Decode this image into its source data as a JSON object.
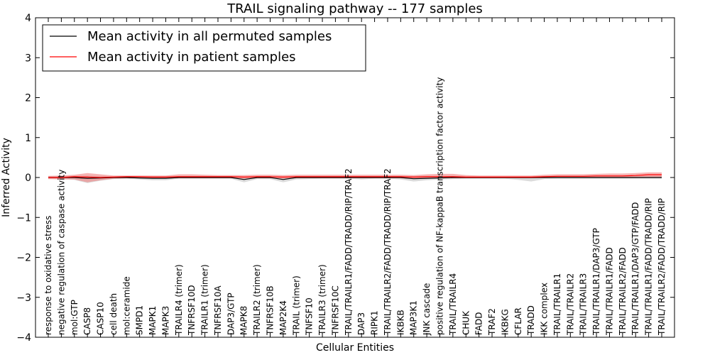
{
  "chart_data": {
    "type": "line",
    "title": "TRAIL signaling pathway -- 177 samples",
    "xlabel": "Cellular Entities",
    "ylabel": "Inferred Activity",
    "ylim": [
      -4,
      4
    ],
    "yticks": [
      -4,
      -3,
      -2,
      -1,
      0,
      1,
      2,
      3,
      4
    ],
    "ytick_labels": [
      "−4",
      "−3",
      "−2",
      "−1",
      "0",
      "1",
      "2",
      "3",
      "4"
    ],
    "legend_position": "top-left",
    "categories": [
      "response to oxidative stress",
      "negative regulation of caspase activity",
      "mol:GTP",
      "CASP8",
      "CASP10",
      "cell death",
      "mol:ceramide",
      "SMPD1",
      "MAPK1",
      "MAPK3",
      "TRAILR4 (trimer)",
      "TNFRSF10D",
      "TRAILR1 (trimer)",
      "TNFRSF10A",
      "DAP3/GTP",
      "MAPK8",
      "TRAILR2 (trimer)",
      "TNFRSF10B",
      "MAP2K4",
      "TRAIL (trimer)",
      "TNFSF10",
      "TRAILR3 (trimer)",
      "TNFRSF10C",
      "TRAIL/TRAILR1/FADD/TRADD/RIP/TRAF2",
      "DAP3",
      "RIPK1",
      "TRAIL/TRAILR2/FADD/TRADD/RIP/TRAF2",
      "IKBKB",
      "MAP3K1",
      "JNK cascade",
      "positive regulation of NF-kappaB transcription factor activity",
      "TRAIL/TRAILR4",
      "CHUK",
      "FADD",
      "TRAF2",
      "IKBKG",
      "CFLAR",
      "TRADD",
      "IKK complex",
      "TRAIL/TRAILR1",
      "TRAIL/TRAILR2",
      "TRAIL/TRAILR3",
      "TRAIL/TRAILR1/DAP3/GTP",
      "TRAIL/TRAILR1/FADD",
      "TRAIL/TRAILR2/FADD",
      "TRAIL/TRAILR1/DAP3/GTP/FADD",
      "TRAIL/TRAILR1/FADD/TRADD/RIP",
      "TRAIL/TRAILR2/FADD/TRADD/RIP"
    ],
    "series": [
      {
        "name": "Mean activity in all permuted samples",
        "color": "#000000",
        "band_color": "#b0b0b0",
        "values": [
          0.0,
          0.0,
          0.0,
          -0.02,
          -0.01,
          0.0,
          0.0,
          -0.01,
          -0.02,
          -0.02,
          0.0,
          0.0,
          0.0,
          0.0,
          0.0,
          -0.05,
          0.0,
          0.0,
          -0.05,
          0.0,
          0.0,
          0.0,
          0.0,
          0.0,
          0.0,
          0.0,
          0.0,
          0.0,
          -0.03,
          -0.02,
          -0.01,
          0.0,
          0.0,
          0.0,
          0.0,
          0.0,
          0.0,
          0.0,
          0.0,
          0.0,
          0.0,
          0.0,
          0.0,
          0.0,
          0.0,
          0.0,
          0.0,
          0.0
        ],
        "band_upper": [
          0.03,
          0.03,
          0.04,
          0.05,
          0.04,
          0.03,
          0.03,
          0.03,
          0.03,
          0.03,
          0.03,
          0.03,
          0.03,
          0.03,
          0.03,
          0.02,
          0.03,
          0.03,
          0.02,
          0.03,
          0.03,
          0.03,
          0.03,
          0.03,
          0.03,
          0.03,
          0.03,
          0.03,
          0.03,
          0.04,
          0.04,
          0.04,
          0.03,
          0.03,
          0.03,
          0.03,
          0.03,
          0.03,
          0.03,
          0.03,
          0.03,
          0.03,
          0.03,
          0.03,
          0.03,
          0.03,
          0.03,
          0.03
        ],
        "band_lower": [
          -0.03,
          -0.03,
          -0.06,
          -0.14,
          -0.08,
          -0.04,
          -0.03,
          -0.05,
          -0.07,
          -0.07,
          -0.03,
          -0.03,
          -0.03,
          -0.03,
          -0.03,
          -0.12,
          -0.04,
          -0.04,
          -0.12,
          -0.05,
          -0.04,
          -0.03,
          -0.03,
          -0.03,
          -0.05,
          -0.03,
          -0.03,
          -0.05,
          -0.1,
          -0.07,
          -0.05,
          -0.04,
          -0.03,
          -0.03,
          -0.03,
          -0.03,
          -0.06,
          -0.1,
          -0.04,
          -0.03,
          -0.03,
          -0.03,
          -0.03,
          -0.03,
          -0.03,
          -0.03,
          -0.03,
          -0.03
        ]
      },
      {
        "name": "Mean activity in patient samples",
        "color": "#ff0000",
        "band_color": "#f08080",
        "values": [
          0.0,
          0.0,
          0.02,
          0.01,
          0.0,
          0.01,
          0.02,
          0.02,
          0.01,
          0.01,
          0.02,
          0.02,
          0.02,
          0.02,
          0.02,
          0.01,
          0.02,
          0.02,
          0.01,
          0.02,
          0.02,
          0.02,
          0.02,
          0.02,
          0.02,
          0.02,
          0.02,
          0.02,
          0.01,
          0.02,
          0.02,
          0.02,
          0.01,
          0.01,
          0.01,
          0.01,
          0.01,
          0.01,
          0.02,
          0.03,
          0.03,
          0.03,
          0.04,
          0.04,
          0.04,
          0.05,
          0.07,
          0.07
        ],
        "band_upper": [
          0.04,
          0.05,
          0.07,
          0.11,
          0.08,
          0.05,
          0.05,
          0.05,
          0.05,
          0.05,
          0.08,
          0.08,
          0.07,
          0.06,
          0.06,
          0.06,
          0.07,
          0.07,
          0.06,
          0.07,
          0.07,
          0.07,
          0.07,
          0.07,
          0.07,
          0.07,
          0.07,
          0.07,
          0.06,
          0.08,
          0.09,
          0.09,
          0.06,
          0.05,
          0.05,
          0.05,
          0.05,
          0.05,
          0.07,
          0.08,
          0.08,
          0.08,
          0.09,
          0.1,
          0.1,
          0.11,
          0.13,
          0.13
        ],
        "band_lower": [
          -0.04,
          -0.05,
          -0.05,
          -0.12,
          -0.07,
          -0.03,
          -0.02,
          -0.02,
          -0.02,
          -0.02,
          -0.02,
          -0.02,
          -0.02,
          -0.02,
          -0.02,
          -0.03,
          -0.02,
          -0.02,
          -0.03,
          -0.02,
          -0.02,
          -0.02,
          -0.02,
          -0.02,
          -0.02,
          -0.02,
          -0.02,
          -0.02,
          -0.04,
          -0.02,
          -0.02,
          -0.02,
          -0.02,
          -0.02,
          -0.02,
          -0.02,
          -0.02,
          -0.02,
          -0.01,
          -0.01,
          -0.01,
          -0.01,
          -0.01,
          -0.01,
          -0.01,
          -0.01,
          0.0,
          0.0
        ]
      }
    ]
  }
}
